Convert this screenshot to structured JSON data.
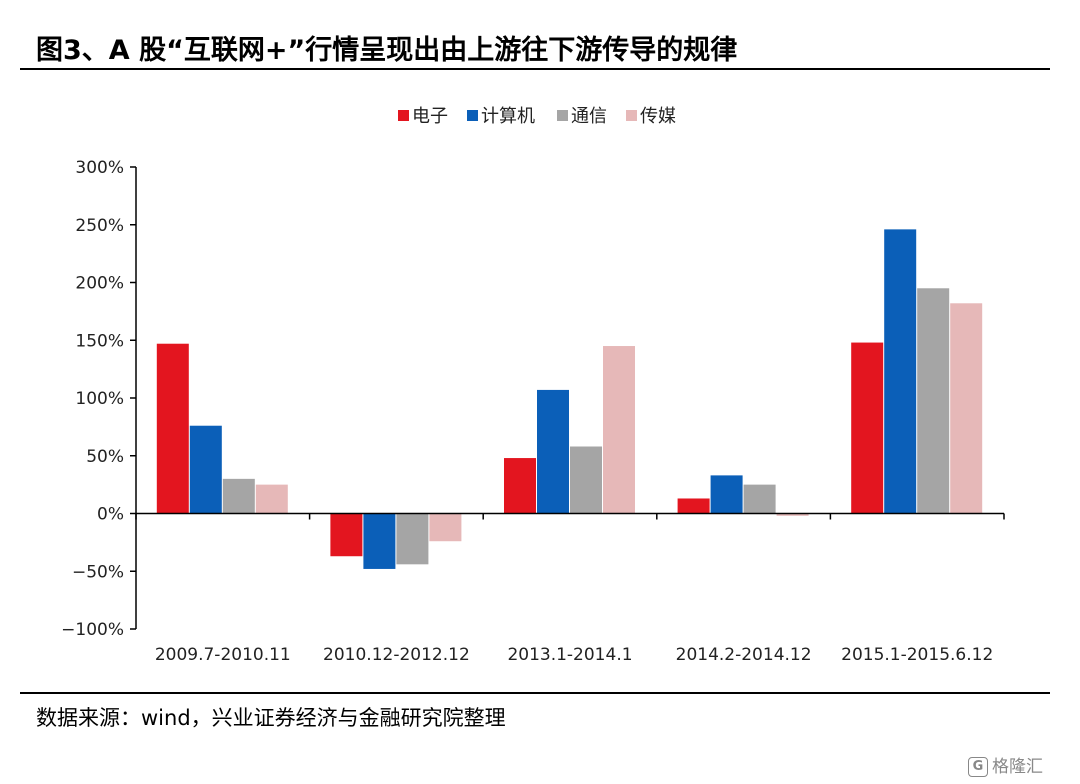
{
  "title": "图3、A 股“互联网+”行情呈现出由上游往下游传导的规律",
  "source": "数据来源：wind，兴业证券经济与金融研究院整理",
  "watermark": "格隆汇",
  "chart_data": {
    "type": "bar",
    "categories": [
      "2009.7-2010.11",
      "2010.12-2012.12",
      "2013.1-2014.1",
      "2014.2-2014.12",
      "2015.1-2015.6.12"
    ],
    "series": [
      {
        "name": "电子",
        "color": "#e3151f",
        "values": [
          147,
          -37,
          48,
          13,
          148
        ]
      },
      {
        "name": "计算机",
        "color": "#0b5fb8",
        "values": [
          76,
          -48,
          107,
          33,
          246
        ]
      },
      {
        "name": "通信",
        "color": "#a5a5a5",
        "values": [
          30,
          -44,
          58,
          25,
          195
        ]
      },
      {
        "name": "传媒",
        "color": "#e6b8b8",
        "values": [
          25,
          -24,
          145,
          -2,
          182
        ]
      }
    ],
    "yticks": [
      "300%",
      "250%",
      "200%",
      "150%",
      "100%",
      "50%",
      "0%",
      "−50%",
      "−100%"
    ],
    "ylim": [
      -100,
      300
    ],
    "legend_position": "top-center"
  }
}
